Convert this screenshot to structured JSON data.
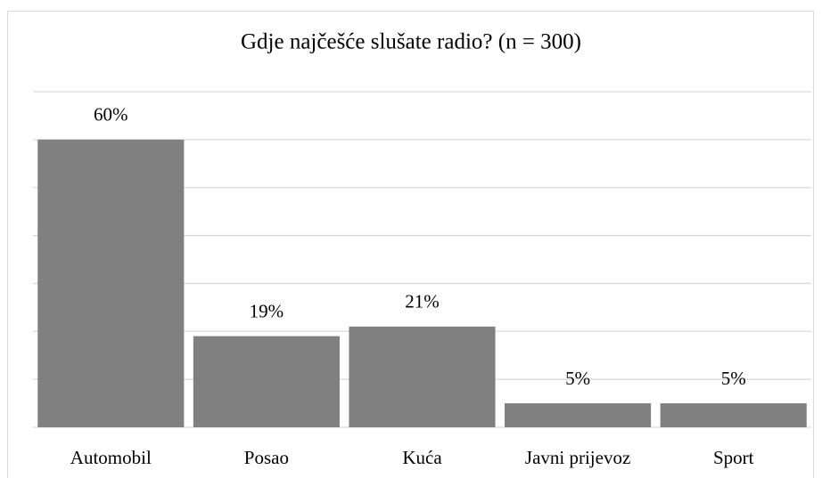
{
  "chart_data": {
    "type": "bar",
    "title": "Gdje najčešće slušate radio? (n = 300)",
    "categories": [
      "Automobil",
      "Posao",
      "Kuća",
      "Javni prijevoz",
      "Sport"
    ],
    "values": [
      60,
      19,
      21,
      5,
      5
    ],
    "value_labels": [
      "60%",
      "19%",
      "21%",
      "5%",
      "5%"
    ],
    "color": "#808080",
    "ylim": [
      0,
      70
    ],
    "yticks": [
      0,
      10,
      20,
      30,
      40,
      50,
      60,
      70
    ],
    "grid": true
  }
}
